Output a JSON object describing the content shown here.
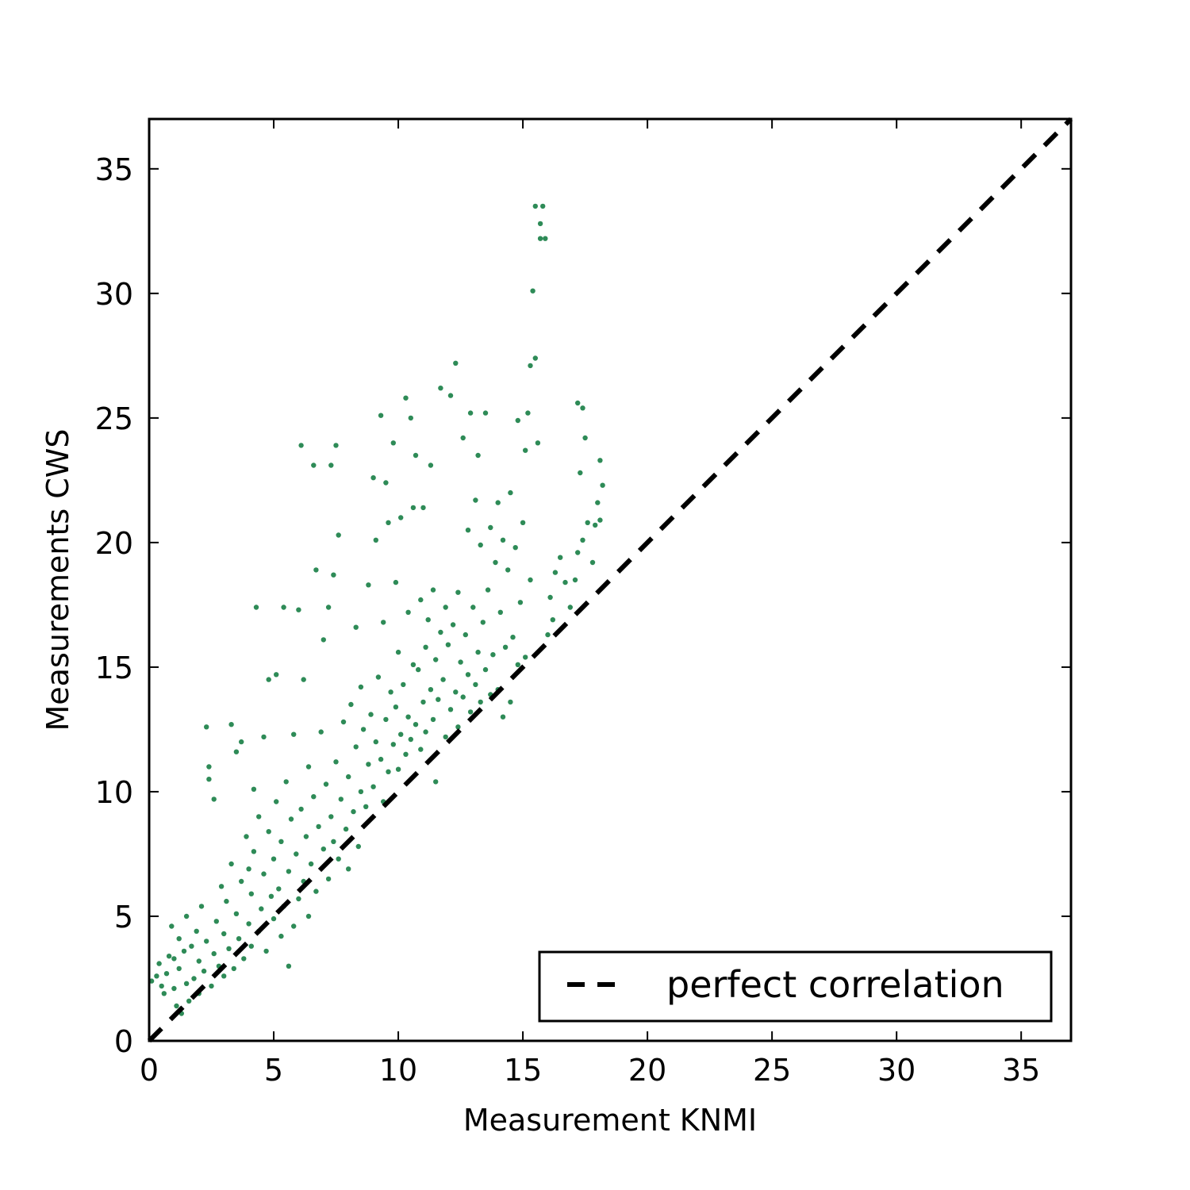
{
  "chart_data": {
    "type": "scatter",
    "title": "",
    "xlabel": "Measurement KNMI",
    "ylabel": "Measurements CWS",
    "xlim": [
      0,
      37
    ],
    "ylim": [
      0,
      37
    ],
    "xticks": [
      0,
      5,
      10,
      15,
      20,
      25,
      30,
      35
    ],
    "yticks": [
      0,
      5,
      10,
      15,
      20,
      25,
      30,
      35
    ],
    "grid": false,
    "legend": {
      "position": "bottom-right",
      "entries": [
        "perfect correlation"
      ]
    },
    "colors": {
      "points": "#2e8b57",
      "reference_line": "#000000"
    },
    "reference_line": {
      "name": "perfect correlation",
      "style": "dashed",
      "x": [
        0,
        37
      ],
      "y": [
        0,
        37
      ]
    },
    "series": [
      {
        "marker": "dot",
        "points": [
          [
            0.1,
            2.4
          ],
          [
            0.3,
            2.6
          ],
          [
            0.4,
            3.1
          ],
          [
            0.5,
            2.2
          ],
          [
            0.6,
            1.9
          ],
          [
            0.7,
            2.7
          ],
          [
            0.8,
            3.4
          ],
          [
            0.9,
            4.6
          ],
          [
            1.0,
            2.1
          ],
          [
            1.0,
            3.3
          ],
          [
            1.1,
            1.4
          ],
          [
            1.2,
            2.9
          ],
          [
            1.2,
            4.1
          ],
          [
            1.3,
            1.1
          ],
          [
            1.4,
            3.6
          ],
          [
            1.5,
            2.3
          ],
          [
            1.5,
            5.0
          ],
          [
            1.6,
            1.6
          ],
          [
            1.7,
            3.8
          ],
          [
            1.8,
            2.5
          ],
          [
            1.9,
            4.4
          ],
          [
            2.0,
            1.9
          ],
          [
            2.0,
            3.2
          ],
          [
            2.1,
            5.4
          ],
          [
            2.2,
            2.8
          ],
          [
            2.3,
            4.0
          ],
          [
            2.3,
            12.6
          ],
          [
            2.4,
            11.0
          ],
          [
            2.4,
            10.5
          ],
          [
            2.5,
            2.2
          ],
          [
            2.6,
            3.5
          ],
          [
            2.6,
            9.7
          ],
          [
            2.7,
            4.8
          ],
          [
            2.8,
            3.0
          ],
          [
            2.9,
            6.2
          ],
          [
            3.0,
            2.6
          ],
          [
            3.0,
            4.3
          ],
          [
            3.1,
            5.6
          ],
          [
            3.2,
            3.7
          ],
          [
            3.3,
            7.1
          ],
          [
            3.3,
            12.7
          ],
          [
            3.4,
            2.9
          ],
          [
            3.5,
            5.1
          ],
          [
            3.5,
            11.6
          ],
          [
            3.6,
            4.1
          ],
          [
            3.7,
            6.4
          ],
          [
            3.7,
            12.0
          ],
          [
            3.8,
            3.3
          ],
          [
            3.9,
            8.2
          ],
          [
            4.0,
            4.7
          ],
          [
            4.0,
            6.9
          ],
          [
            4.1,
            3.8
          ],
          [
            4.1,
            5.9
          ],
          [
            4.2,
            7.6
          ],
          [
            4.2,
            10.1
          ],
          [
            4.3,
            17.4
          ],
          [
            4.4,
            4.4
          ],
          [
            4.4,
            9.0
          ],
          [
            4.5,
            5.3
          ],
          [
            4.6,
            6.7
          ],
          [
            4.6,
            12.2
          ],
          [
            4.7,
            3.6
          ],
          [
            4.8,
            8.4
          ],
          [
            4.8,
            14.5
          ],
          [
            4.9,
            5.8
          ],
          [
            5.0,
            4.9
          ],
          [
            5.0,
            7.3
          ],
          [
            5.1,
            9.6
          ],
          [
            5.1,
            14.7
          ],
          [
            5.2,
            6.1
          ],
          [
            5.3,
            4.2
          ],
          [
            5.3,
            8.0
          ],
          [
            5.4,
            17.4
          ],
          [
            5.4,
            5.4
          ],
          [
            5.5,
            10.4
          ],
          [
            5.6,
            6.8
          ],
          [
            5.6,
            3.0
          ],
          [
            5.7,
            8.9
          ],
          [
            5.8,
            4.6
          ],
          [
            5.8,
            12.3
          ],
          [
            5.9,
            7.5
          ],
          [
            6.0,
            17.3
          ],
          [
            6.0,
            5.7
          ],
          [
            6.1,
            9.3
          ],
          [
            6.1,
            23.9
          ],
          [
            6.2,
            6.4
          ],
          [
            6.2,
            14.5
          ],
          [
            6.3,
            8.2
          ],
          [
            6.4,
            5.0
          ],
          [
            6.4,
            11.0
          ],
          [
            6.5,
            7.1
          ],
          [
            6.6,
            9.8
          ],
          [
            6.6,
            23.1
          ],
          [
            6.7,
            6.0
          ],
          [
            6.7,
            18.9
          ],
          [
            6.8,
            8.6
          ],
          [
            6.9,
            12.4
          ],
          [
            7.0,
            7.7
          ],
          [
            7.0,
            16.1
          ],
          [
            7.1,
            10.3
          ],
          [
            7.2,
            6.5
          ],
          [
            7.2,
            17.4
          ],
          [
            7.3,
            9.0
          ],
          [
            7.3,
            23.1
          ],
          [
            7.4,
            8.0
          ],
          [
            7.4,
            18.7
          ],
          [
            7.5,
            11.2
          ],
          [
            7.5,
            23.9
          ],
          [
            7.6,
            7.3
          ],
          [
            7.6,
            20.3
          ],
          [
            7.7,
            9.7
          ],
          [
            7.8,
            12.8
          ],
          [
            7.9,
            8.5
          ],
          [
            8.0,
            10.6
          ],
          [
            8.0,
            6.9
          ],
          [
            8.1,
            13.5
          ],
          [
            8.2,
            9.2
          ],
          [
            8.3,
            11.8
          ],
          [
            8.3,
            16.6
          ],
          [
            8.4,
            7.8
          ],
          [
            8.5,
            10.0
          ],
          [
            8.5,
            14.2
          ],
          [
            8.6,
            12.5
          ],
          [
            8.7,
            9.4
          ],
          [
            8.8,
            11.1
          ],
          [
            8.8,
            18.3
          ],
          [
            8.9,
            13.1
          ],
          [
            9.0,
            10.2
          ],
          [
            9.0,
            22.6
          ],
          [
            9.1,
            12.0
          ],
          [
            9.1,
            20.1
          ],
          [
            9.2,
            14.6
          ],
          [
            9.3,
            11.3
          ],
          [
            9.3,
            25.1
          ],
          [
            9.4,
            9.6
          ],
          [
            9.4,
            16.8
          ],
          [
            9.5,
            12.9
          ],
          [
            9.5,
            22.4
          ],
          [
            9.6,
            10.8
          ],
          [
            9.6,
            20.8
          ],
          [
            9.7,
            14.0
          ],
          [
            9.8,
            11.9
          ],
          [
            9.8,
            24.0
          ],
          [
            9.9,
            13.4
          ],
          [
            9.9,
            18.4
          ],
          [
            10.0,
            10.9
          ],
          [
            10.0,
            15.6
          ],
          [
            10.1,
            12.3
          ],
          [
            10.1,
            21.0
          ],
          [
            10.2,
            14.3
          ],
          [
            10.3,
            11.5
          ],
          [
            10.3,
            25.8
          ],
          [
            10.4,
            13.0
          ],
          [
            10.4,
            17.2
          ],
          [
            10.5,
            12.1
          ],
          [
            10.5,
            25.0
          ],
          [
            10.6,
            15.1
          ],
          [
            10.6,
            21.4
          ],
          [
            10.7,
            12.7
          ],
          [
            10.7,
            23.5
          ],
          [
            10.8,
            14.9
          ],
          [
            10.9,
            11.7
          ],
          [
            10.9,
            17.7
          ],
          [
            11.0,
            13.6
          ],
          [
            11.0,
            21.4
          ],
          [
            11.1,
            15.8
          ],
          [
            11.1,
            12.4
          ],
          [
            11.2,
            16.9
          ],
          [
            11.3,
            14.1
          ],
          [
            11.3,
            23.1
          ],
          [
            11.4,
            12.9
          ],
          [
            11.4,
            18.1
          ],
          [
            11.5,
            15.3
          ],
          [
            11.5,
            10.4
          ],
          [
            11.6,
            13.7
          ],
          [
            11.7,
            16.4
          ],
          [
            11.7,
            26.2
          ],
          [
            11.8,
            14.5
          ],
          [
            11.9,
            12.2
          ],
          [
            11.9,
            17.4
          ],
          [
            12.0,
            15.9
          ],
          [
            12.1,
            13.3
          ],
          [
            12.1,
            25.9
          ],
          [
            12.2,
            16.7
          ],
          [
            12.3,
            14.0
          ],
          [
            12.3,
            27.2
          ],
          [
            12.4,
            12.6
          ],
          [
            12.4,
            18.0
          ],
          [
            12.5,
            15.2
          ],
          [
            12.6,
            13.8
          ],
          [
            12.6,
            24.2
          ],
          [
            12.7,
            16.3
          ],
          [
            12.8,
            14.7
          ],
          [
            12.8,
            20.5
          ],
          [
            12.9,
            13.2
          ],
          [
            12.9,
            25.2
          ],
          [
            13.0,
            17.4
          ],
          [
            13.1,
            14.3
          ],
          [
            13.1,
            21.7
          ],
          [
            13.2,
            15.6
          ],
          [
            13.2,
            23.5
          ],
          [
            13.3,
            13.6
          ],
          [
            13.3,
            19.9
          ],
          [
            13.4,
            16.8
          ],
          [
            13.5,
            14.9
          ],
          [
            13.5,
            25.2
          ],
          [
            13.6,
            18.1
          ],
          [
            13.7,
            13.9
          ],
          [
            13.7,
            20.6
          ],
          [
            13.8,
            15.5
          ],
          [
            13.9,
            19.2
          ],
          [
            14.0,
            14.1
          ],
          [
            14.0,
            21.6
          ],
          [
            14.1,
            17.2
          ],
          [
            14.2,
            13.0
          ],
          [
            14.2,
            20.1
          ],
          [
            14.3,
            15.8
          ],
          [
            14.4,
            18.9
          ],
          [
            14.5,
            13.6
          ],
          [
            14.5,
            22.0
          ],
          [
            14.6,
            16.2
          ],
          [
            14.7,
            19.8
          ],
          [
            14.8,
            15.1
          ],
          [
            14.8,
            24.9
          ],
          [
            14.9,
            17.6
          ],
          [
            15.0,
            20.8
          ],
          [
            15.1,
            15.4
          ],
          [
            15.1,
            23.7
          ],
          [
            15.2,
            25.2
          ],
          [
            15.3,
            18.5
          ],
          [
            15.3,
            27.1
          ],
          [
            15.4,
            30.1
          ],
          [
            15.5,
            27.4
          ],
          [
            15.5,
            33.5
          ],
          [
            15.6,
            24.0
          ],
          [
            15.7,
            32.8
          ],
          [
            15.7,
            32.2
          ],
          [
            15.8,
            33.5
          ],
          [
            15.9,
            32.2
          ],
          [
            16.0,
            16.3
          ],
          [
            16.1,
            17.8
          ],
          [
            16.2,
            16.9
          ],
          [
            16.3,
            18.8
          ],
          [
            16.5,
            19.4
          ],
          [
            16.7,
            18.4
          ],
          [
            16.9,
            17.4
          ],
          [
            17.1,
            18.5
          ],
          [
            17.2,
            25.6
          ],
          [
            17.3,
            22.8
          ],
          [
            17.4,
            25.4
          ],
          [
            17.4,
            20.1
          ],
          [
            17.5,
            24.2
          ],
          [
            17.6,
            20.8
          ],
          [
            17.8,
            19.2
          ],
          [
            17.9,
            20.7
          ],
          [
            18.0,
            21.6
          ],
          [
            18.1,
            20.9
          ],
          [
            18.1,
            23.3
          ],
          [
            18.2,
            22.3
          ],
          [
            17.2,
            19.6
          ]
        ]
      }
    ]
  }
}
